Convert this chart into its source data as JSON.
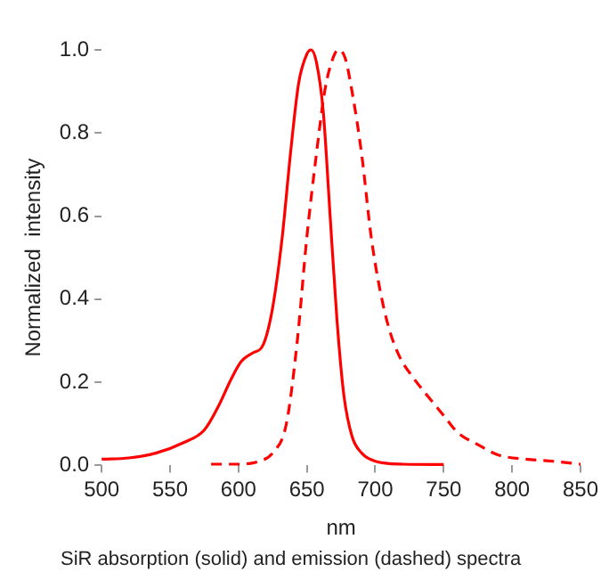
{
  "chart_data": {
    "type": "line",
    "xlabel": "nm",
    "ylabel": "Normalized  intensity",
    "annotations": [
      "SiR absorption (solid) and emission (dashed) spectra"
    ],
    "xlim": [
      500,
      850
    ],
    "xticks": [
      500,
      550,
      600,
      650,
      700,
      750,
      800,
      850
    ],
    "ylim": [
      0,
      1
    ],
    "yticks": [
      {
        "value": 0,
        "label": "0.0"
      },
      {
        "value": 0.2,
        "label": "0.2"
      },
      {
        "value": 0.4,
        "label": "0.4"
      },
      {
        "value": 0.6,
        "label": "0.6"
      },
      {
        "value": 0.8,
        "label": "0.8"
      },
      {
        "value": 1,
        "label": "1.0"
      }
    ],
    "grid": false,
    "legend": false,
    "marker": "none",
    "series": [
      {
        "color": "#ff0000",
        "line_style": "solid",
        "x": [
          500,
          520,
          540,
          560,
          575,
          585,
          595,
          602,
          610,
          618,
          625,
          632,
          638,
          644,
          650,
          653,
          657,
          662,
          667,
          672,
          677,
          683,
          690,
          700,
          720,
          750
        ],
        "values": [
          0.015,
          0.018,
          0.03,
          0.055,
          0.085,
          0.14,
          0.21,
          0.25,
          0.27,
          0.29,
          0.38,
          0.55,
          0.75,
          0.92,
          0.99,
          1.0,
          0.97,
          0.85,
          0.6,
          0.35,
          0.17,
          0.07,
          0.03,
          0.01,
          0.003,
          0.002
        ]
      },
      {
        "color": "#ff0000",
        "line_style": "dashed",
        "x": [
          580,
          600,
          615,
          625,
          635,
          643,
          650,
          657,
          663,
          668,
          673,
          678,
          683,
          690,
          697,
          703,
          710,
          718,
          728,
          740,
          750,
          760,
          775,
          790,
          810,
          830,
          850
        ],
        "values": [
          0.003,
          0.003,
          0.01,
          0.03,
          0.1,
          0.3,
          0.55,
          0.75,
          0.9,
          0.97,
          1.0,
          0.98,
          0.9,
          0.75,
          0.55,
          0.43,
          0.33,
          0.26,
          0.21,
          0.16,
          0.12,
          0.08,
          0.05,
          0.025,
          0.015,
          0.01,
          0.003
        ]
      }
    ]
  }
}
